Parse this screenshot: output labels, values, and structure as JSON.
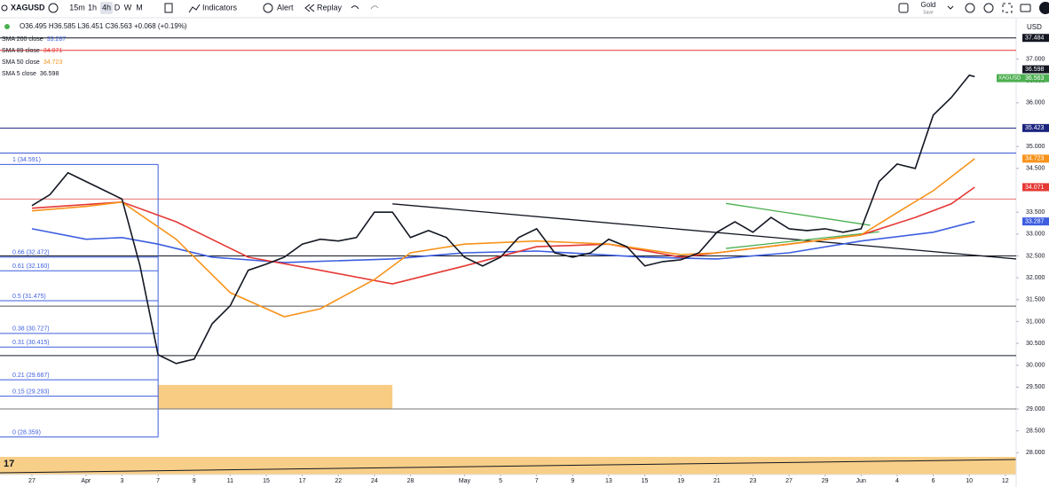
{
  "toolbar": {
    "symbol": "XAGUSD",
    "intervals": [
      "15m",
      "1h",
      "4h",
      "D",
      "W",
      "M"
    ],
    "indicators": "Indicators",
    "alert": "Alert",
    "replay": "Replay",
    "account": "Gold",
    "save": "Save"
  },
  "ohlc": "O36.495 H36.585 L36.451 C36.563 +0.068 (+0.19%)",
  "chart_data": {
    "type": "line",
    "currency": "USD",
    "xlim": [
      -1.77,
      54.6
    ],
    "ylim": [
      27.5,
      37.6
    ],
    "xticks": [
      {
        "value": 0,
        "label": "27"
      },
      {
        "value": 3,
        "label": "Apr"
      },
      {
        "value": 5,
        "label": "3"
      },
      {
        "value": 7,
        "label": "7"
      },
      {
        "value": 9,
        "label": "9"
      },
      {
        "value": 11,
        "label": "11"
      },
      {
        "value": 13,
        "label": "15"
      },
      {
        "value": 15,
        "label": "17"
      },
      {
        "value": 17,
        "label": "22"
      },
      {
        "value": 19,
        "label": "24"
      },
      {
        "value": 21,
        "label": "28"
      },
      {
        "value": 24,
        "label": "May"
      },
      {
        "value": 26,
        "label": "5"
      },
      {
        "value": 28,
        "label": "7"
      },
      {
        "value": 30,
        "label": "9"
      },
      {
        "value": 32,
        "label": "13"
      },
      {
        "value": 34,
        "label": "15"
      },
      {
        "value": 36,
        "label": "19"
      },
      {
        "value": 38,
        "label": "21"
      },
      {
        "value": 40,
        "label": "23"
      },
      {
        "value": 42,
        "label": "27"
      },
      {
        "value": 44,
        "label": "29"
      },
      {
        "value": 46,
        "label": "Jun"
      },
      {
        "value": 48,
        "label": "4"
      },
      {
        "value": 50,
        "label": "6"
      },
      {
        "value": 52,
        "label": "10"
      },
      {
        "value": 54,
        "label": "12"
      }
    ],
    "yticks": [
      {
        "value": 37,
        "label": "37.000"
      },
      {
        "value": 36.5,
        "label": "36.500"
      },
      {
        "value": 36,
        "label": "36.000"
      },
      {
        "value": 35,
        "label": "35.000"
      },
      {
        "value": 34.5,
        "label": "34.500"
      },
      {
        "value": 33.5,
        "label": "33.500"
      },
      {
        "value": 33,
        "label": "33.000"
      },
      {
        "value": 32.5,
        "label": "32.500"
      },
      {
        "value": 32,
        "label": "32.000"
      },
      {
        "value": 31.5,
        "label": "31.500"
      },
      {
        "value": 31,
        "label": "31.000"
      },
      {
        "value": 30.5,
        "label": "30.500"
      },
      {
        "value": 30,
        "label": "30.000"
      },
      {
        "value": 29.5,
        "label": "29.500"
      },
      {
        "value": 29,
        "label": "29.000"
      },
      {
        "value": 28.5,
        "label": "28.500"
      },
      {
        "value": 28,
        "label": "28.000"
      }
    ],
    "series": [
      {
        "name": "SMA 200 close",
        "color": "#3d5ee0",
        "x": [
          0,
          3,
          5,
          7,
          10,
          14,
          20,
          24,
          28,
          34,
          38,
          42,
          46,
          50,
          52.3
        ],
        "values": [
          33.12,
          32.88,
          32.92,
          32.77,
          32.47,
          32.35,
          32.43,
          32.57,
          32.61,
          32.47,
          32.43,
          32.57,
          32.84,
          33.04,
          33.287
        ]
      },
      {
        "name": "SMA 89 close",
        "color": "#e53935",
        "x": [
          0,
          5,
          8,
          12,
          16,
          20,
          24,
          28,
          32,
          36,
          38,
          42,
          46,
          49,
          51,
          52.3
        ],
        "values": [
          33.59,
          33.73,
          33.28,
          32.47,
          32.17,
          31.86,
          32.27,
          32.71,
          32.77,
          32.47,
          32.57,
          32.77,
          32.98,
          33.38,
          33.69,
          34.071
        ]
      },
      {
        "name": "SMA 50 close",
        "color": "#f7931a",
        "x": [
          0,
          3,
          5,
          8,
          11,
          14,
          16,
          19,
          21,
          24,
          28,
          32,
          36,
          38,
          42,
          46,
          48,
          50,
          52.3
        ],
        "values": [
          33.53,
          33.63,
          33.73,
          32.88,
          31.66,
          31.11,
          31.29,
          31.96,
          32.57,
          32.77,
          32.84,
          32.77,
          32.53,
          32.57,
          32.77,
          32.98,
          33.49,
          33.99,
          34.723
        ]
      },
      {
        "name": "SMA 5 close",
        "color": "#131722",
        "x": [
          0,
          1,
          2,
          3,
          4,
          5,
          6,
          7,
          8,
          9,
          10,
          11,
          12,
          13,
          14,
          15,
          16,
          17,
          18,
          19,
          20,
          21,
          22,
          23,
          24,
          25,
          26,
          27,
          28,
          29,
          30,
          31,
          32,
          33,
          34,
          35,
          36,
          37,
          38,
          39,
          40,
          41,
          42,
          43,
          44,
          45,
          46,
          47,
          48,
          49,
          50,
          51,
          52,
          52.3
        ],
        "values": [
          33.65,
          33.9,
          34.4,
          34.2,
          34.0,
          33.8,
          32.27,
          30.24,
          30.04,
          30.14,
          30.95,
          31.36,
          32.17,
          32.31,
          32.47,
          32.77,
          32.88,
          32.84,
          32.92,
          33.5,
          33.5,
          32.92,
          33.08,
          32.92,
          32.47,
          32.27,
          32.47,
          32.92,
          33.12,
          32.57,
          32.47,
          32.57,
          32.88,
          32.71,
          32.27,
          32.37,
          32.41,
          32.57,
          33.04,
          33.28,
          33.04,
          33.38,
          33.12,
          33.08,
          33.12,
          33.04,
          33.12,
          34.2,
          34.6,
          34.5,
          35.72,
          36.12,
          36.63,
          36.598
        ]
      }
    ],
    "levels": [
      {
        "value": 37.484,
        "color": "#131722"
      },
      {
        "value": 37.2,
        "color": "#e53935"
      },
      {
        "value": 35.423,
        "color": "#1a237e"
      },
      {
        "value": 34.85,
        "color": "#2f4fd0"
      },
      {
        "value": 33.8,
        "color": "#e57373"
      },
      {
        "value": 32.5,
        "color": "#131722"
      },
      {
        "value": 31.35,
        "color": "#555"
      },
      {
        "value": 30.22,
        "color": "#131722"
      },
      {
        "value": 29.0,
        "color": "#777"
      }
    ],
    "price_labels": [
      {
        "label": "37.484",
        "value": 37.484,
        "color": "#131722"
      },
      {
        "label": "36.598",
        "value": 36.598,
        "color": "#131722"
      },
      {
        "name": "XAGUSD",
        "label": "36.563",
        "value": 36.563,
        "color": "#4caf50"
      },
      {
        "label": "35.423",
        "value": 35.423,
        "color": "#1a237e"
      },
      {
        "label": "34.723",
        "value": 34.723,
        "color": "#f7931a"
      },
      {
        "label": "34.071",
        "value": 34.071,
        "color": "#e53935"
      },
      {
        "label": "33.287",
        "value": 33.287,
        "color": "#3d5ee0"
      }
    ],
    "fib": [
      {
        "label": "1 (34.591)",
        "value": 34.591
      },
      {
        "label": "0.66 (32.472)",
        "value": 32.472
      },
      {
        "label": "0.61 (32.160)",
        "value": 32.16
      },
      {
        "label": "0.5 (31.475)",
        "value": 31.475
      },
      {
        "label": "0.38 (30.727)",
        "value": 30.727
      },
      {
        "label": "0.31 (30.415)",
        "value": 30.415
      },
      {
        "label": "0.21 (29.667)",
        "value": 29.667
      },
      {
        "label": "0.15 (29.293)",
        "value": 29.293
      },
      {
        "label": "0 (28.359)",
        "value": 28.359
      }
    ],
    "zone": {
      "x": [
        7,
        20
      ],
      "y": [
        29.0,
        29.55
      ]
    },
    "trendlines": [
      {
        "color": "#131722",
        "x": [
          20,
          54.6
        ],
        "y": [
          33.69,
          32.43
        ]
      },
      {
        "color": "#4caf50",
        "x": [
          38.5,
          46.5
        ],
        "y": [
          33.7,
          33.2
        ]
      },
      {
        "color": "#4caf50",
        "x": [
          38.5,
          47
        ],
        "y": [
          32.67,
          33.05
        ]
      }
    ]
  }
}
